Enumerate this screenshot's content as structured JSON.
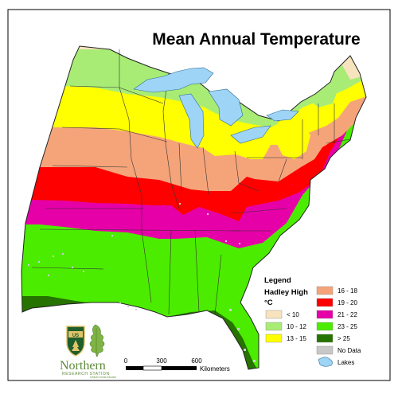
{
  "map": {
    "title": "Mean Annual Temperature"
  },
  "legend": {
    "heading": "Legend",
    "model": "Hadley High",
    "unit": "°C",
    "items": [
      {
        "label": "< 10",
        "color": "#f7e3bd"
      },
      {
        "label": "10 - 12",
        "color": "#a8ec76"
      },
      {
        "label": "13 - 15",
        "color": "#ffff00"
      },
      {
        "label": "16 - 18",
        "color": "#f5a47a"
      },
      {
        "label": "19 - 20",
        "color": "#ff0000"
      },
      {
        "label": "21 - 22",
        "color": "#e600a8"
      },
      {
        "label": "23 - 25",
        "color": "#4cec00"
      },
      {
        "label": "> 25",
        "color": "#267300"
      },
      {
        "label": "No Data",
        "color": "#c8c8c8"
      },
      {
        "label": "Lakes",
        "color": "#9ed4f5"
      }
    ]
  },
  "scale_bar": {
    "ticks": [
      "0",
      "300",
      "600"
    ],
    "unit": "Kilometers"
  },
  "logo": {
    "shield_text": "US",
    "org_name": "Northern",
    "org_sub": "RESEARCH STATION",
    "org_sub2": "USDA Forest Service"
  }
}
